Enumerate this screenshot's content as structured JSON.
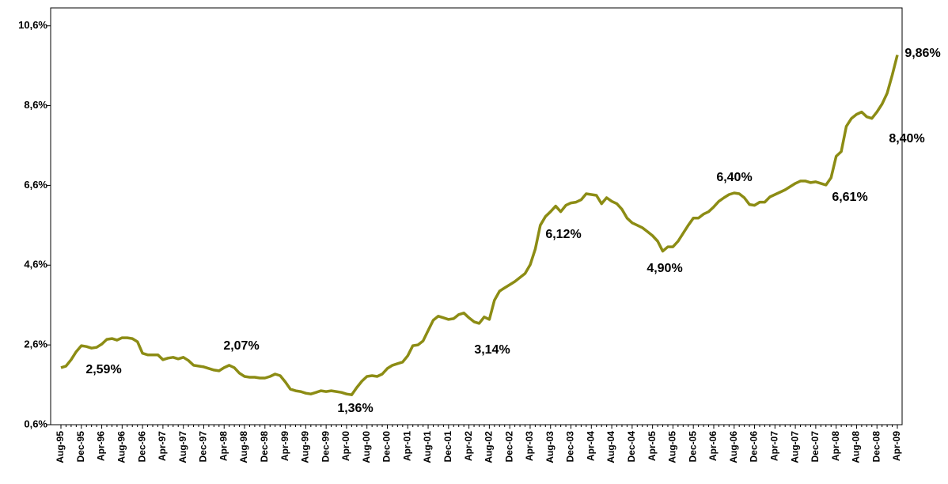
{
  "chart_data": {
    "type": "line",
    "categories": [
      "Aug-95",
      null,
      null,
      null,
      "Dec-95",
      null,
      null,
      null,
      "Apr-96",
      null,
      null,
      null,
      "Aug-96",
      null,
      null,
      null,
      "Dec-96",
      null,
      null,
      null,
      "Apr-97",
      null,
      null,
      null,
      "Aug-97",
      null,
      null,
      null,
      "Dec-97",
      null,
      null,
      null,
      "Apr-98",
      null,
      null,
      null,
      "Aug-98",
      null,
      null,
      null,
      "Dec-98",
      null,
      null,
      null,
      "Apr-99",
      null,
      null,
      null,
      "Aug-99",
      null,
      null,
      null,
      "Dec-99",
      null,
      null,
      null,
      "Apr-00",
      null,
      null,
      null,
      "Aug-00",
      null,
      null,
      null,
      "Dec-00",
      null,
      null,
      null,
      "Apr-01",
      null,
      null,
      null,
      "Aug-01",
      null,
      null,
      null,
      "Dec-01",
      null,
      null,
      null,
      "Apr-02",
      null,
      null,
      null,
      "Aug-02",
      null,
      null,
      null,
      "Dec-02",
      null,
      null,
      null,
      "Apr-03",
      null,
      null,
      null,
      "Aug-03",
      null,
      null,
      null,
      "Dec-03",
      null,
      null,
      null,
      "Apr-04",
      null,
      null,
      null,
      "Aug-04",
      null,
      null,
      null,
      "Dec-04",
      null,
      null,
      null,
      "Apr-05",
      null,
      null,
      null,
      "Aug-05",
      null,
      null,
      null,
      "Dec-05",
      null,
      null,
      null,
      "Apr-06",
      null,
      null,
      null,
      "Aug-06",
      null,
      null,
      null,
      "Dec-06",
      null,
      null,
      null,
      "Apr-07",
      null,
      null,
      null,
      "Aug-07",
      null,
      null,
      null,
      "Dec-07",
      null,
      null,
      null,
      "Apr-08",
      null,
      null,
      null,
      "Aug-08",
      null,
      null,
      null,
      "Dec-08",
      null,
      null,
      null,
      "Apr-09"
    ],
    "values": [
      2.03,
      2.07,
      2.23,
      2.43,
      2.58,
      2.56,
      2.52,
      2.54,
      2.62,
      2.74,
      2.76,
      2.72,
      2.78,
      2.78,
      2.76,
      2.68,
      2.39,
      2.35,
      2.35,
      2.35,
      2.23,
      2.27,
      2.29,
      2.25,
      2.29,
      2.21,
      2.09,
      2.07,
      2.05,
      2.01,
      1.97,
      1.95,
      2.03,
      2.09,
      2.03,
      1.89,
      1.81,
      1.79,
      1.79,
      1.77,
      1.77,
      1.81,
      1.87,
      1.83,
      1.67,
      1.49,
      1.45,
      1.43,
      1.39,
      1.37,
      1.41,
      1.45,
      1.43,
      1.45,
      1.43,
      1.41,
      1.37,
      1.35,
      1.53,
      1.69,
      1.81,
      1.83,
      1.81,
      1.87,
      2.01,
      2.09,
      2.13,
      2.17,
      2.33,
      2.58,
      2.6,
      2.7,
      2.96,
      3.22,
      3.32,
      3.28,
      3.24,
      3.26,
      3.36,
      3.4,
      3.28,
      3.18,
      3.14,
      3.3,
      3.24,
      3.72,
      3.95,
      4.03,
      4.11,
      4.19,
      4.29,
      4.39,
      4.61,
      5.0,
      5.6,
      5.82,
      5.94,
      6.08,
      5.94,
      6.1,
      6.16,
      6.18,
      6.24,
      6.39,
      6.37,
      6.35,
      6.14,
      6.29,
      6.2,
      6.14,
      6.0,
      5.78,
      5.66,
      5.6,
      5.54,
      5.44,
      5.34,
      5.2,
      4.95,
      5.06,
      5.06,
      5.2,
      5.4,
      5.6,
      5.78,
      5.78,
      5.88,
      5.94,
      6.06,
      6.2,
      6.29,
      6.37,
      6.41,
      6.39,
      6.29,
      6.12,
      6.1,
      6.18,
      6.18,
      6.31,
      6.37,
      6.43,
      6.49,
      6.57,
      6.65,
      6.71,
      6.71,
      6.67,
      6.69,
      6.65,
      6.61,
      6.79,
      7.33,
      7.45,
      8.08,
      8.28,
      8.38,
      8.44,
      8.32,
      8.28,
      8.44,
      8.64,
      8.91,
      9.37,
      9.87
    ],
    "color": "#8c8c14",
    "ylim": [
      0.6,
      11.05
    ],
    "yticks": [
      {
        "value": 0.6,
        "label": "0,6%"
      },
      {
        "value": 2.6,
        "label": "2,6%"
      },
      {
        "value": 4.6,
        "label": "4,6%"
      },
      {
        "value": 6.6,
        "label": "6,6%"
      },
      {
        "value": 8.6,
        "label": "8,6%"
      },
      {
        "value": 10.6,
        "label": "10,6%"
      }
    ],
    "annotations": [
      "2,59%",
      "2,07%",
      "1,36%",
      "3,14%",
      "6,12%",
      "4,90%",
      "6,40%",
      "6,61%",
      "8,40%",
      "9,86%"
    ]
  }
}
